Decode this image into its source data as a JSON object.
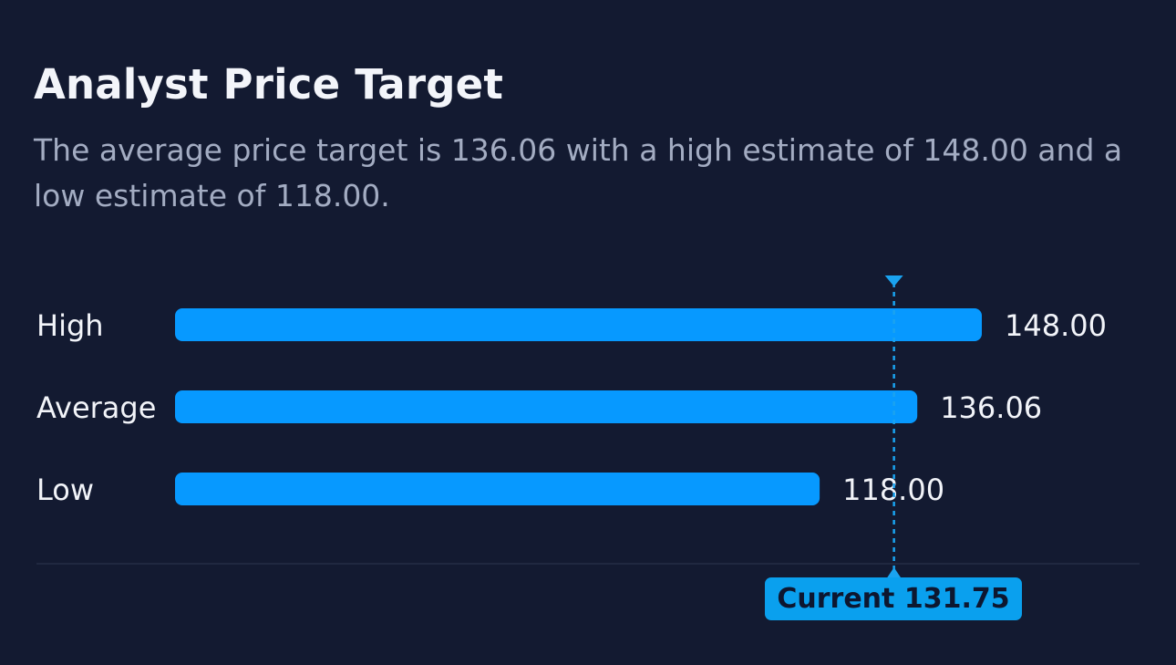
{
  "header": {
    "title": "Analyst Price Target",
    "subtitle": "The average price target is 136.06 with a high estimate of 148.00 and a low estimate of 118.00."
  },
  "colors": {
    "background": "#131a31",
    "bar": "#0799ff",
    "marker": "#1aa3f0",
    "divider": "#252d46"
  },
  "chart_data": {
    "type": "bar",
    "orientation": "horizontal",
    "categories": [
      "High",
      "Average",
      "Low"
    ],
    "values": [
      148.0,
      136.06,
      118.0
    ],
    "value_labels": [
      "148.00",
      "136.06",
      "118.00"
    ],
    "marker": {
      "label": "Current",
      "value": 131.75,
      "value_label": "131.75",
      "text": "Current 131.75"
    }
  }
}
